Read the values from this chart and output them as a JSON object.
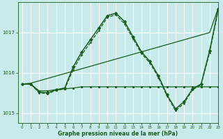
{
  "xlabel": "Graphe pression niveau de la mer (hPa)",
  "bg_color": "#c8eaea",
  "grid_color": "#ffffff",
  "line_color": "#1a5c1a",
  "ylim": [
    1014.75,
    1017.75
  ],
  "xlim": [
    -0.5,
    23
  ],
  "yticks": [
    1015,
    1016,
    1017
  ],
  "xticks": [
    0,
    1,
    2,
    3,
    4,
    5,
    6,
    7,
    8,
    9,
    10,
    11,
    12,
    13,
    14,
    15,
    16,
    17,
    18,
    19,
    20,
    21,
    22,
    23
  ],
  "series": [
    {
      "x": [
        0,
        1,
        2,
        3,
        4,
        5,
        6,
        7,
        8,
        9,
        10,
        11,
        12,
        13,
        14,
        15,
        16,
        17,
        18,
        19,
        20,
        21,
        22,
        23
      ],
      "y": [
        1015.72,
        1015.74,
        1015.8,
        1015.86,
        1015.92,
        1015.98,
        1016.04,
        1016.1,
        1016.16,
        1016.22,
        1016.28,
        1016.34,
        1016.4,
        1016.46,
        1016.52,
        1016.58,
        1016.64,
        1016.7,
        1016.76,
        1016.82,
        1016.88,
        1016.94,
        1017.0,
        1017.6
      ],
      "linestyle": "-",
      "marker": null,
      "ms": 0,
      "lw": 0.9,
      "color": "#1a5c1a"
    },
    {
      "x": [
        0,
        1,
        2,
        3,
        4,
        5,
        6,
        7,
        8,
        9,
        10,
        11,
        12,
        13,
        14,
        15,
        16,
        17,
        18,
        19,
        20,
        21,
        22,
        23
      ],
      "y": [
        1015.72,
        1015.72,
        1015.55,
        1015.55,
        1015.58,
        1015.6,
        1015.62,
        1015.65,
        1015.65,
        1015.65,
        1015.65,
        1015.65,
        1015.65,
        1015.65,
        1015.65,
        1015.65,
        1015.65,
        1015.65,
        1015.65,
        1015.65,
        1015.65,
        1015.65,
        1015.65,
        1015.65
      ],
      "linestyle": "-",
      "marker": "s",
      "ms": 1.8,
      "lw": 0.9,
      "color": "#1a5c1a"
    },
    {
      "x": [
        0,
        1,
        2,
        3,
        4,
        5,
        6,
        7,
        8,
        9,
        10,
        11,
        12,
        13,
        14,
        15,
        16,
        17,
        18,
        19,
        20,
        21,
        22,
        23
      ],
      "y": [
        1015.72,
        1015.72,
        1015.52,
        1015.5,
        1015.58,
        1015.62,
        1016.15,
        1016.52,
        1016.82,
        1017.12,
        1017.42,
        1017.48,
        1017.28,
        1016.9,
        1016.52,
        1016.28,
        1015.92,
        1015.45,
        1015.1,
        1015.28,
        1015.6,
        1015.72,
        1016.55,
        1017.58
      ],
      "linestyle": "-",
      "marker": "D",
      "ms": 2.2,
      "lw": 1.1,
      "color": "#1a5c1a"
    },
    {
      "x": [
        0,
        1,
        2,
        3,
        4,
        5,
        6,
        7,
        8,
        9,
        10,
        11,
        12,
        13,
        14,
        15,
        16,
        17,
        18,
        19,
        20,
        21,
        22,
        23
      ],
      "y": [
        1015.72,
        1015.72,
        1015.5,
        1015.48,
        1015.56,
        1015.6,
        1016.08,
        1016.45,
        1016.75,
        1017.05,
        1017.38,
        1017.44,
        1017.22,
        1016.85,
        1016.48,
        1016.24,
        1015.88,
        1015.42,
        1015.06,
        1015.24,
        1015.58,
        1015.7,
        1016.5,
        1017.55
      ],
      "linestyle": "--",
      "marker": ".",
      "ms": 2.5,
      "lw": 0.9,
      "color": "#1a5c1a"
    }
  ]
}
